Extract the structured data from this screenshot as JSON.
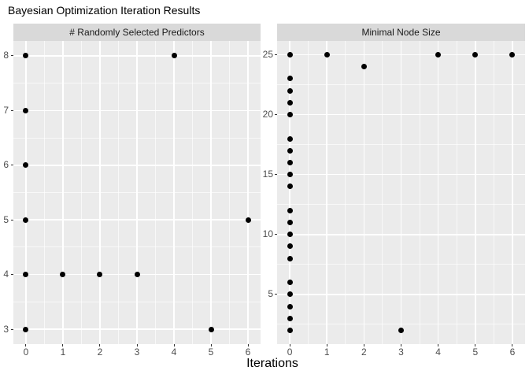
{
  "title": "Bayesian Optimization Iteration Results",
  "x_axis_title": "Iterations",
  "colors": {
    "background": "#ffffff",
    "panel_background": "#EBEBEB",
    "strip_background": "#D9D9D9",
    "grid_major": "#FFFFFF",
    "point": "#000000",
    "tick_label": "#4D4D4D"
  },
  "chart_data": [
    {
      "type": "scatter",
      "facet": "# Randomly Selected Predictors",
      "xlabel": "Iterations",
      "ylabel": "",
      "xlim": [
        -0.34,
        6.34
      ],
      "ylim": [
        2.73,
        8.27
      ],
      "x_ticks": [
        0,
        1,
        2,
        3,
        4,
        5,
        6
      ],
      "y_ticks": [
        3,
        4,
        5,
        6,
        7,
        8
      ],
      "x_minor": [
        0.5,
        1.5,
        2.5,
        3.5,
        4.5,
        5.5
      ],
      "y_minor": [
        3.5,
        4.5,
        5.5,
        6.5,
        7.5
      ],
      "grid": true,
      "points": [
        [
          0,
          8
        ],
        [
          4,
          8
        ],
        [
          0,
          7
        ],
        [
          0,
          6
        ],
        [
          0,
          5
        ],
        [
          6,
          5
        ],
        [
          0,
          4
        ],
        [
          1,
          4
        ],
        [
          2,
          4
        ],
        [
          3,
          4
        ],
        [
          0,
          3
        ],
        [
          5,
          3
        ]
      ]
    },
    {
      "type": "scatter",
      "facet": "Minimal Node Size",
      "xlabel": "Iterations",
      "ylabel": "",
      "xlim": [
        -0.34,
        6.34
      ],
      "ylim": [
        0.85,
        26.15
      ],
      "x_ticks": [
        0,
        1,
        2,
        3,
        4,
        5,
        6
      ],
      "y_ticks": [
        5,
        10,
        15,
        20,
        25
      ],
      "x_minor": [
        0.5,
        1.5,
        2.5,
        3.5,
        4.5,
        5.5
      ],
      "y_minor": [
        2.5,
        7.5,
        12.5,
        17.5,
        22.5
      ],
      "grid": true,
      "points": [
        [
          0,
          25
        ],
        [
          1,
          25
        ],
        [
          4,
          25
        ],
        [
          5,
          25
        ],
        [
          6,
          25
        ],
        [
          2,
          24
        ],
        [
          0,
          23
        ],
        [
          0,
          22
        ],
        [
          0,
          21
        ],
        [
          0,
          20
        ],
        [
          0,
          18
        ],
        [
          0,
          17
        ],
        [
          0,
          16
        ],
        [
          0,
          15
        ],
        [
          0,
          14
        ],
        [
          0,
          12
        ],
        [
          0,
          11
        ],
        [
          0,
          10
        ],
        [
          0,
          9
        ],
        [
          0,
          8
        ],
        [
          0,
          6
        ],
        [
          0,
          5
        ],
        [
          0,
          4
        ],
        [
          0,
          3
        ],
        [
          0,
          2
        ],
        [
          3,
          2
        ]
      ]
    }
  ]
}
